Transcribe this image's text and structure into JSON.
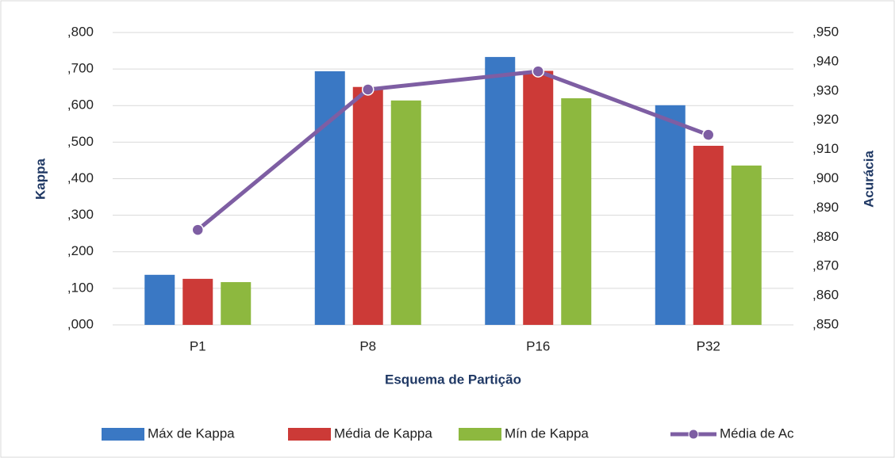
{
  "chart_data": {
    "type": "bar",
    "xlabel": "Esquema de Partição",
    "ylabel": "Kappa",
    "y2label": "Acurácia",
    "categories": [
      "P1",
      "P8",
      "P16",
      "P32"
    ],
    "series": [
      {
        "name": "Máx de Kappa",
        "color": "#3a78c4",
        "values": [
          0.137,
          0.694,
          0.733,
          0.601
        ]
      },
      {
        "name": "Média de Kappa",
        "color": "#cc3a37",
        "values": [
          0.126,
          0.651,
          0.695,
          0.49
        ]
      },
      {
        "name": "Mín de Kappa",
        "color": "#8db83f",
        "values": [
          0.117,
          0.614,
          0.62,
          0.436
        ]
      },
      {
        "name": "Média de Ac",
        "color": "#7e5ea3",
        "type": "line",
        "axis": "y2",
        "values": [
          0.8825,
          0.9305,
          0.9367,
          0.915
        ]
      }
    ],
    "ylim": [
      0,
      0.8
    ],
    "yticks": [
      {
        "value": 0,
        "label": ",000"
      },
      {
        "value": 0.1,
        "label": ",100"
      },
      {
        "value": 0.2,
        "label": ",200"
      },
      {
        "value": 0.3,
        "label": ",300"
      },
      {
        "value": 0.4,
        "label": ",400"
      },
      {
        "value": 0.5,
        "label": ",500"
      },
      {
        "value": 0.6,
        "label": ",600"
      },
      {
        "value": 0.7,
        "label": ",700"
      },
      {
        "value": 0.8,
        "label": ",800"
      }
    ],
    "y2lim": [
      0.85,
      0.95
    ],
    "y2ticks": [
      {
        "value": 0.85,
        "label": ",850"
      },
      {
        "value": 0.86,
        "label": ",860"
      },
      {
        "value": 0.87,
        "label": ",870"
      },
      {
        "value": 0.88,
        "label": ",880"
      },
      {
        "value": 0.89,
        "label": ",890"
      },
      {
        "value": 0.9,
        "label": ",900"
      },
      {
        "value": 0.91,
        "label": ",910"
      },
      {
        "value": 0.92,
        "label": ",920"
      },
      {
        "value": 0.93,
        "label": ",930"
      },
      {
        "value": 0.94,
        "label": ",940"
      },
      {
        "value": 0.95,
        "label": ",950"
      }
    ],
    "grid": true,
    "legend": "bottom"
  }
}
